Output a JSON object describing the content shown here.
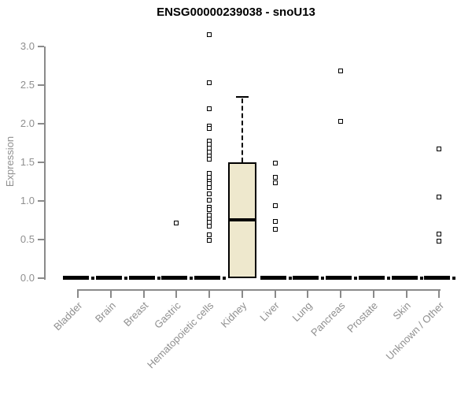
{
  "chart_data": {
    "type": "boxplot",
    "title": "ENSG00000239038 - snoU13",
    "ylabel": "Expression",
    "ylim": [
      0.0,
      3.0
    ],
    "yticks": [
      "0.0",
      "0.5",
      "1.0",
      "1.5",
      "2.0",
      "2.5",
      "3.0"
    ],
    "grid": false,
    "boxes": [
      {
        "category": "Bladder",
        "whisker_low": 0,
        "q1": 0,
        "median": 0,
        "q3": 0,
        "whisker_high": 0,
        "outliers": []
      },
      {
        "category": "Brain",
        "whisker_low": 0,
        "q1": 0,
        "median": 0,
        "q3": 0,
        "whisker_high": 0,
        "outliers": []
      },
      {
        "category": "Breast",
        "whisker_low": 0,
        "q1": 0,
        "median": 0,
        "q3": 0,
        "whisker_high": 0,
        "outliers": []
      },
      {
        "category": "Gastric",
        "whisker_low": 0,
        "q1": 0,
        "median": 0,
        "q3": 0,
        "whisker_high": 0,
        "outliers": [
          0.71
        ]
      },
      {
        "category": "Hematopoietic cells",
        "whisker_low": 0,
        "q1": 0,
        "median": 0,
        "q3": 0,
        "whisker_high": 0,
        "outliers": [
          3.15,
          2.53,
          2.19,
          1.97,
          1.94,
          1.78,
          1.73,
          1.68,
          1.63,
          1.58,
          1.54,
          1.36,
          1.31,
          1.26,
          1.22,
          1.17,
          1.09,
          1.01,
          0.92,
          0.89,
          0.82,
          0.77,
          0.72,
          0.67,
          0.56,
          0.49
        ]
      },
      {
        "category": "Kidney",
        "whisker_low": 0,
        "q1": 0,
        "median": 0.76,
        "q3": 1.5,
        "whisker_high": 2.35,
        "outliers": []
      },
      {
        "category": "Liver",
        "whisker_low": 0,
        "q1": 0,
        "median": 0,
        "q3": 0,
        "whisker_high": 0,
        "outliers": [
          1.49,
          1.31,
          1.23,
          0.94,
          0.73,
          0.63
        ]
      },
      {
        "category": "Lung",
        "whisker_low": 0,
        "q1": 0,
        "median": 0,
        "q3": 0,
        "whisker_high": 0,
        "outliers": []
      },
      {
        "category": "Pancreas",
        "whisker_low": 0,
        "q1": 0,
        "median": 0,
        "q3": 0,
        "whisker_high": 0,
        "outliers": [
          2.68,
          2.03
        ]
      },
      {
        "category": "Prostate",
        "whisker_low": 0,
        "q1": 0,
        "median": 0,
        "q3": 0,
        "whisker_high": 0,
        "outliers": []
      },
      {
        "category": "Skin",
        "whisker_low": 0,
        "q1": 0,
        "median": 0,
        "q3": 0,
        "whisker_high": 0,
        "outliers": []
      },
      {
        "category": "Unknown / Other",
        "whisker_low": 0,
        "q1": 0,
        "median": 0,
        "q3": 0,
        "whisker_high": 0,
        "outliers": [
          1.67,
          1.05,
          0.57,
          0.48
        ]
      }
    ],
    "colors": {
      "box_fill": "#EEE8CD",
      "box_border": "#000000",
      "median": "#000000",
      "outlier_border": "#000000",
      "axis": "#8a8a8a",
      "tick_text": "#8f8f8f",
      "title_text": "#000000"
    }
  }
}
